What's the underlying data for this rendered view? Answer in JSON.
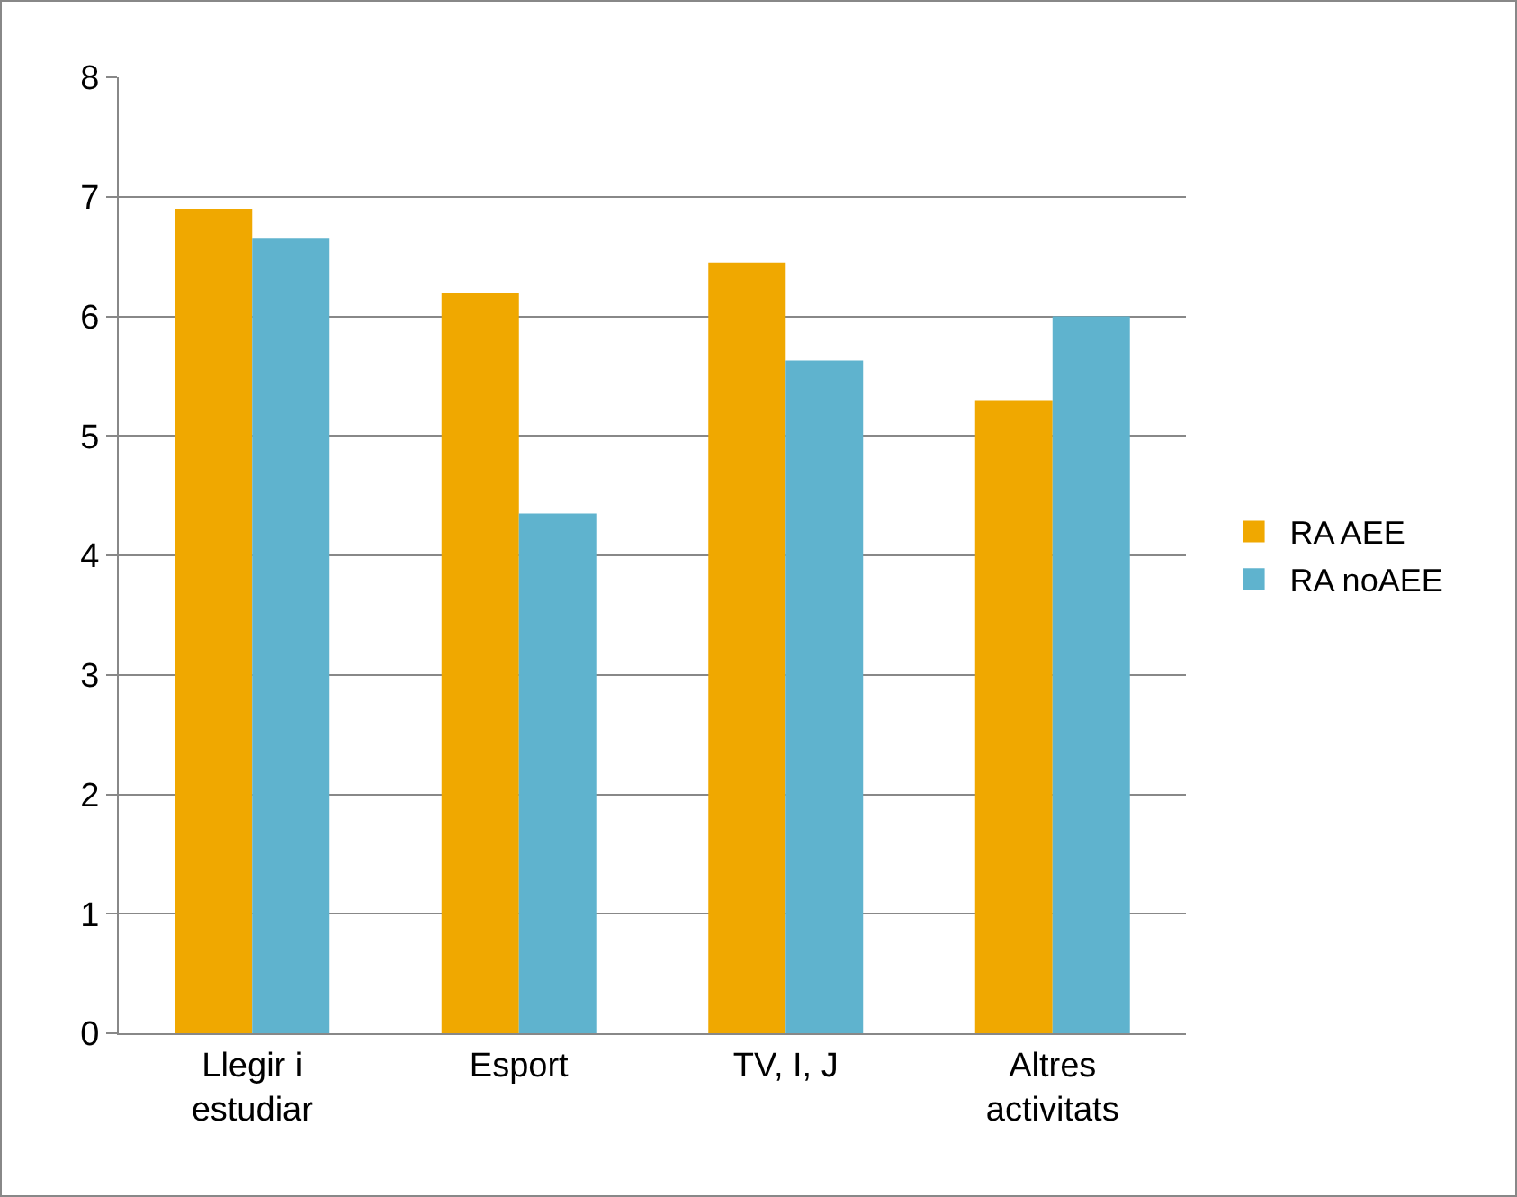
{
  "chart_data": {
    "type": "bar",
    "categories": [
      "Llegir i estudiar",
      "Esport",
      "TV, I, J",
      "Altres activitats"
    ],
    "series": [
      {
        "name": "RA AEE",
        "color": "#f0a800",
        "values": [
          6.9,
          6.2,
          6.45,
          5.3
        ]
      },
      {
        "name": "RA noAEE",
        "color": "#5fb3ce",
        "values": [
          6.65,
          4.35,
          5.63,
          6.0
        ]
      }
    ],
    "ylim": [
      0,
      8
    ],
    "yticks": [
      0,
      1,
      2,
      3,
      4,
      5,
      6,
      7,
      8
    ],
    "grid": "y",
    "legend": "right"
  }
}
